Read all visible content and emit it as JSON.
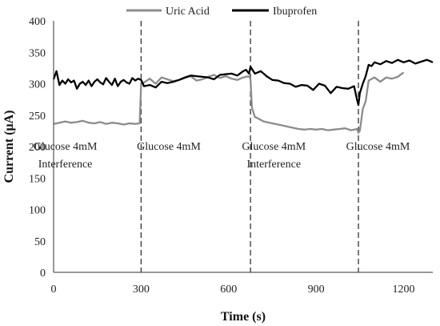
{
  "chart_data": {
    "type": "line",
    "xlabel": "Time (s)",
    "ylabel": "Current (μA)",
    "xlim": [
      0,
      1300
    ],
    "ylim": [
      0,
      400
    ],
    "xticks": [
      0,
      300,
      600,
      900,
      1200
    ],
    "yticks": [
      0,
      50,
      100,
      150,
      200,
      250,
      300,
      350,
      400
    ],
    "grid": false,
    "legend_position": "top",
    "colors": {
      "Uric Acid": "#8c8c8c",
      "Ibuprofen": "#000000"
    },
    "vlines": [
      300,
      675,
      1045
    ],
    "annotations": [
      {
        "x": 40,
        "y": 195,
        "lines": [
          "Glucose 4mM",
          "Interference"
        ]
      },
      {
        "x": 395,
        "y": 195,
        "lines": [
          "Glucose 4mM"
        ]
      },
      {
        "x": 755,
        "y": 195,
        "lines": [
          "Glucose 4mM",
          "Interference"
        ]
      },
      {
        "x": 1112,
        "y": 195,
        "lines": [
          "Glucose 4mM"
        ]
      }
    ],
    "series": [
      {
        "name": "Uric Acid",
        "x": [
          0,
          20,
          40,
          60,
          80,
          100,
          120,
          140,
          160,
          180,
          200,
          220,
          240,
          260,
          280,
          295,
          300,
          310,
          330,
          350,
          370,
          390,
          410,
          430,
          450,
          470,
          490,
          510,
          530,
          550,
          570,
          590,
          610,
          630,
          650,
          660,
          670,
          675,
          680,
          690,
          700,
          720,
          740,
          760,
          780,
          800,
          820,
          840,
          860,
          880,
          900,
          920,
          940,
          960,
          980,
          1000,
          1020,
          1040,
          1045,
          1050,
          1060,
          1070,
          1080,
          1100,
          1120,
          1140,
          1160,
          1180,
          1200
        ],
        "y": [
          236,
          238,
          240,
          238,
          239,
          241,
          238,
          237,
          239,
          236,
          238,
          237,
          235,
          237,
          236,
          237,
          299,
          302,
          308,
          300,
          310,
          307,
          304,
          306,
          309,
          312,
          305,
          307,
          311,
          314,
          309,
          312,
          308,
          306,
          310,
          311,
          312,
          307,
          262,
          247,
          245,
          240,
          238,
          236,
          234,
          232,
          230,
          228,
          227,
          228,
          227,
          228,
          226,
          227,
          228,
          229,
          226,
          228,
          222,
          225,
          260,
          272,
          305,
          310,
          303,
          310,
          308,
          311,
          318
        ]
      },
      {
        "name": "Ibuprofen",
        "x": [
          0,
          10,
          20,
          30,
          40,
          50,
          60,
          70,
          80,
          90,
          100,
          110,
          120,
          130,
          140,
          150,
          160,
          170,
          180,
          190,
          200,
          210,
          220,
          230,
          240,
          250,
          260,
          270,
          280,
          290,
          300,
          310,
          330,
          350,
          370,
          390,
          410,
          430,
          450,
          470,
          490,
          510,
          530,
          550,
          570,
          590,
          610,
          630,
          650,
          660,
          670,
          675,
          690,
          710,
          730,
          750,
          770,
          790,
          810,
          830,
          850,
          870,
          890,
          910,
          930,
          950,
          970,
          990,
          1010,
          1030,
          1040,
          1045,
          1050,
          1060,
          1070,
          1080,
          1090,
          1100,
          1120,
          1140,
          1160,
          1180,
          1200,
          1220,
          1240,
          1260,
          1280,
          1300
        ],
        "y": [
          307,
          320,
          298,
          305,
          300,
          307,
          302,
          305,
          292,
          300,
          303,
          298,
          305,
          296,
          303,
          307,
          302,
          299,
          309,
          303,
          298,
          308,
          296,
          303,
          306,
          302,
          300,
          309,
          305,
          308,
          306,
          296,
          298,
          294,
          303,
          301,
          303,
          306,
          310,
          313,
          312,
          311,
          310,
          307,
          314,
          315,
          316,
          313,
          320,
          322,
          316,
          327,
          316,
          320,
          312,
          306,
          305,
          301,
          300,
          295,
          298,
          297,
          290,
          300,
          297,
          285,
          295,
          293,
          292,
          296,
          275,
          266,
          285,
          300,
          312,
          330,
          328,
          334,
          331,
          336,
          333,
          338,
          334,
          337,
          332,
          335,
          338,
          334
        ]
      }
    ]
  }
}
